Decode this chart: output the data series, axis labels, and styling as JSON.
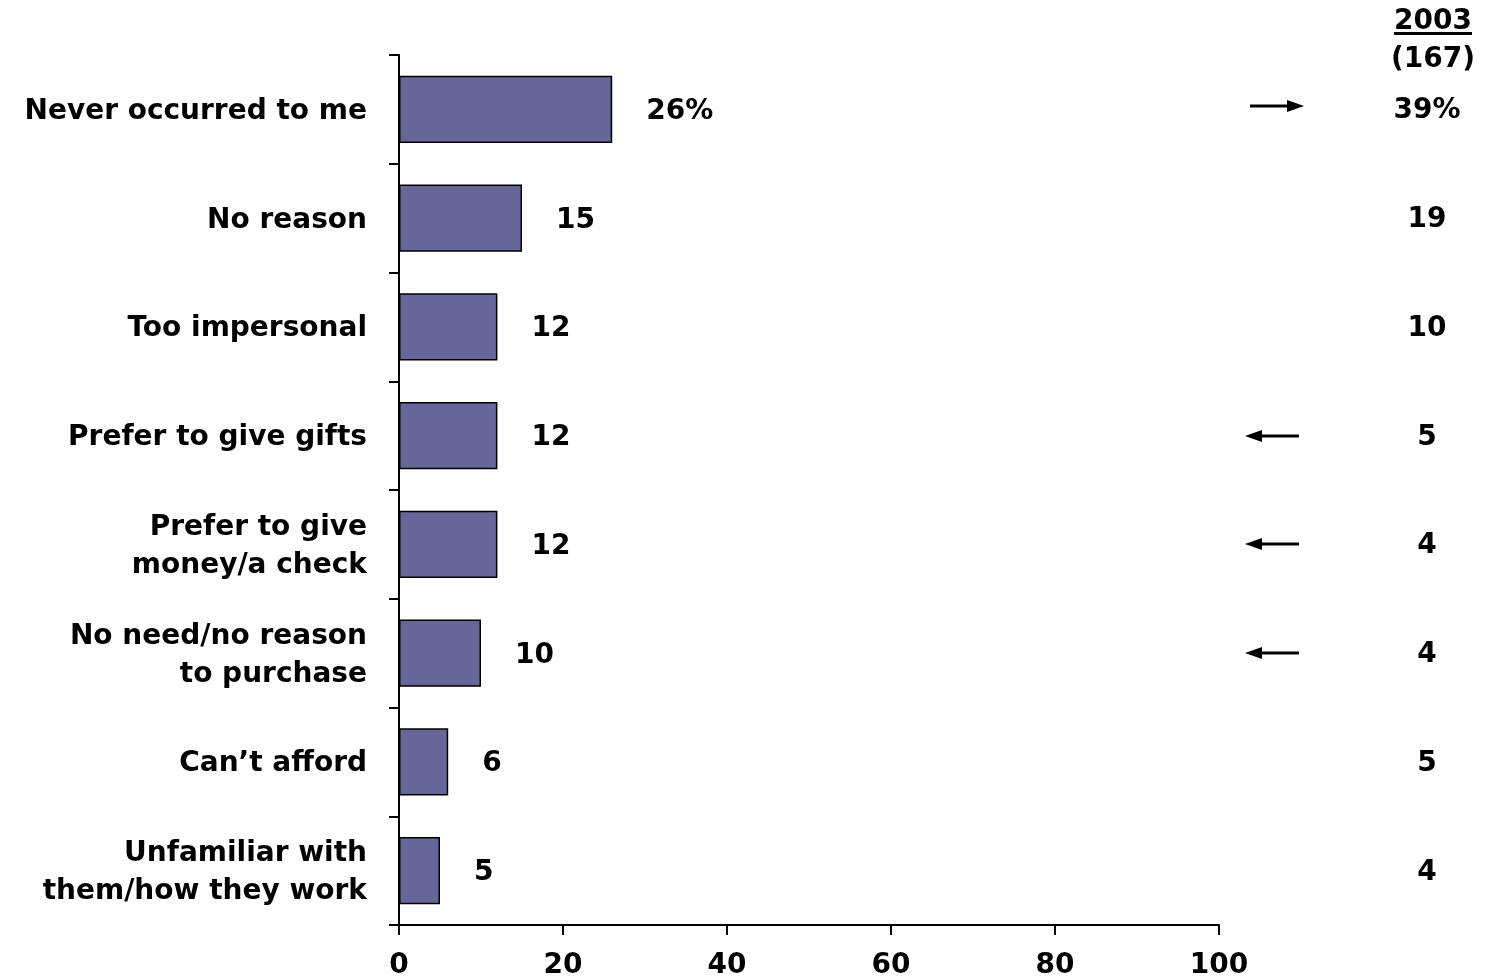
{
  "chart_data": {
    "type": "bar",
    "orientation": "horizontal",
    "categories": [
      "Never occurred to me",
      "No reason",
      "Too impersonal",
      "Prefer to give gifts",
      "Prefer to give money/a check",
      "No need/no reason to purchase",
      "Can’t afford",
      "Unfamiliar with them/how they work"
    ],
    "values": [
      26,
      15,
      12,
      12,
      12,
      10,
      6,
      5
    ],
    "color": "#666699",
    "value_labels": [
      "26%",
      "15",
      "12",
      "12",
      "12",
      "10",
      "6",
      "5"
    ],
    "xlim": [
      0,
      100
    ],
    "xticks": [
      0,
      20,
      40,
      60,
      80,
      100
    ],
    "annotations": [
      "2003",
      "(167)",
      "39%",
      "19",
      "10",
      "5",
      "4",
      "4",
      "5",
      "4"
    ]
  }
}
